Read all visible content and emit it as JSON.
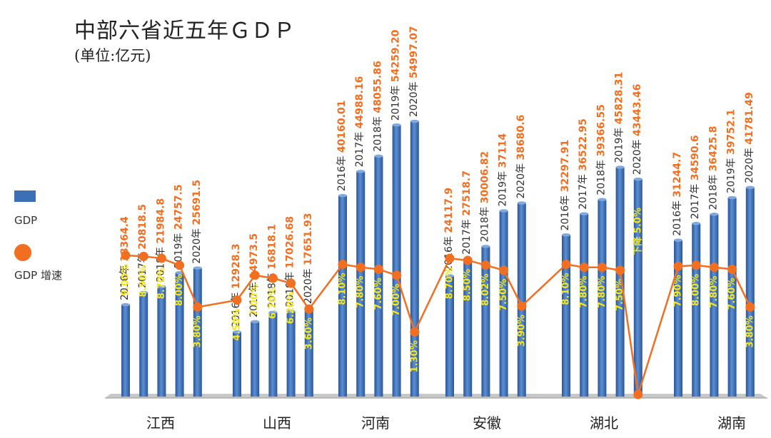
{
  "title": "中部六省近五年ＧＤＰ",
  "subtitle": "(单位:亿元)",
  "legend": {
    "gdp": "GDP",
    "growth": "GDP 增速"
  },
  "colors": {
    "bar": "#3d6fb5",
    "line": "#f26f21",
    "value_label": "#f26f21",
    "rate_label": "#f5e620"
  },
  "chart_data": {
    "type": "bar",
    "categories": [
      "江西",
      "山西",
      "河南",
      "安徽",
      "湖北",
      "湖南"
    ],
    "years": [
      "2016年",
      "2017年",
      "2018年",
      "2019年",
      "2020年"
    ],
    "series": [
      {
        "name": "GDP",
        "type": "bar",
        "values": [
          [
            "18364.4",
            "20818.5",
            "21984.8",
            "24757.5",
            "25691.5"
          ],
          [
            "12928.3",
            "14973.5",
            "16818.1",
            "17026.68",
            "17651.93"
          ],
          [
            "40160.01",
            "44988.16",
            "48055.86",
            "54259.20",
            "54997.07"
          ],
          [
            "24117.9",
            "27518.7",
            "30006.82",
            "37114",
            "38680.6"
          ],
          [
            "32297.91",
            "36522.95",
            "39366.55",
            "45828.31",
            "43443.46"
          ],
          [
            "31244.7",
            "34590.6",
            "36425.8",
            "39752.1",
            "41781.49"
          ]
        ]
      },
      {
        "name": "GDP 增速",
        "type": "line",
        "values": [
          [
            9.0,
            8.9,
            8.7,
            8.0,
            3.8
          ],
          [
            4.5,
            7.0,
            6.7,
            6.2,
            3.6
          ],
          [
            8.1,
            7.8,
            7.6,
            7.0,
            1.3
          ],
          [
            8.7,
            8.5,
            8.02,
            7.5,
            3.9
          ],
          [
            8.1,
            7.8,
            7.8,
            7.5,
            -5.0
          ],
          [
            7.9,
            8.0,
            7.8,
            7.6,
            3.8
          ]
        ]
      }
    ],
    "rate_labels": [
      [
        "9.00%",
        "8.90%",
        "8.70%",
        "8.00%",
        "3.80%"
      ],
      [
        "4.50%",
        "7.00%",
        "6.70%",
        "6.20%",
        "3.60%"
      ],
      [
        "8.10%",
        "7.80%",
        "7.60%",
        "7.00%",
        "1.30%"
      ],
      [
        "8.70%",
        "8.50%",
        "8.02%",
        "7.50%",
        "3.90%"
      ],
      [
        "8.10%",
        "7.80%",
        "7.80%",
        "7.50%",
        "下降 5.0%"
      ],
      [
        "7.90%",
        "8.00%",
        "7.80%",
        "7.60%",
        "3.80%"
      ]
    ],
    "y_range_gdp": [
      0,
      57000
    ],
    "y_range_growth": [
      -5,
      9
    ]
  }
}
